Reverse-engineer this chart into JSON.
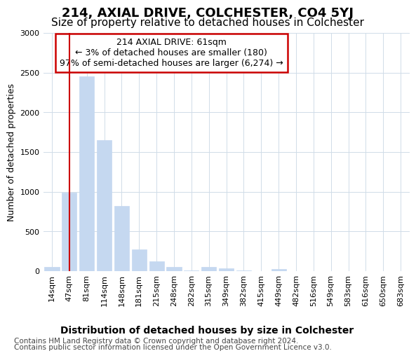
{
  "title": "214, AXIAL DRIVE, COLCHESTER, CO4 5YJ",
  "subtitle": "Size of property relative to detached houses in Colchester",
  "xlabel": "Distribution of detached houses by size in Colchester",
  "ylabel": "Number of detached properties",
  "footer_line1": "Contains HM Land Registry data © Crown copyright and database right 2024.",
  "footer_line2": "Contains public sector information licensed under the Open Government Licence v3.0.",
  "annotation_title": "214 AXIAL DRIVE: 61sqm",
  "annotation_line1": "← 3% of detached houses are smaller (180)",
  "annotation_line2": "97% of semi-detached houses are larger (6,274) →",
  "bar_labels": [
    "14sqm",
    "47sqm",
    "81sqm",
    "114sqm",
    "148sqm",
    "181sqm",
    "215sqm",
    "248sqm",
    "282sqm",
    "315sqm",
    "349sqm",
    "382sqm",
    "415sqm",
    "449sqm",
    "482sqm",
    "516sqm",
    "549sqm",
    "583sqm",
    "616sqm",
    "650sqm",
    "683sqm"
  ],
  "bar_values": [
    55,
    985,
    2450,
    1650,
    820,
    270,
    120,
    55,
    5,
    50,
    35,
    5,
    0,
    30,
    0,
    0,
    0,
    0,
    0,
    0,
    0
  ],
  "bar_color": "#c5d8f0",
  "bar_edge_color": "#c5d8f0",
  "vline_color": "#cc0000",
  "vline_x": 1.5,
  "annotation_box_color": "#cc0000",
  "ylim": [
    0,
    3000
  ],
  "yticks": [
    0,
    500,
    1000,
    1500,
    2000,
    2500,
    3000
  ],
  "bg_color": "#ffffff",
  "axes_bg_color": "#ffffff",
  "grid_color": "#d0dce8",
  "title_fontsize": 13,
  "subtitle_fontsize": 11,
  "xlabel_fontsize": 10,
  "ylabel_fontsize": 9,
  "tick_fontsize": 8,
  "footer_fontsize": 7.5
}
